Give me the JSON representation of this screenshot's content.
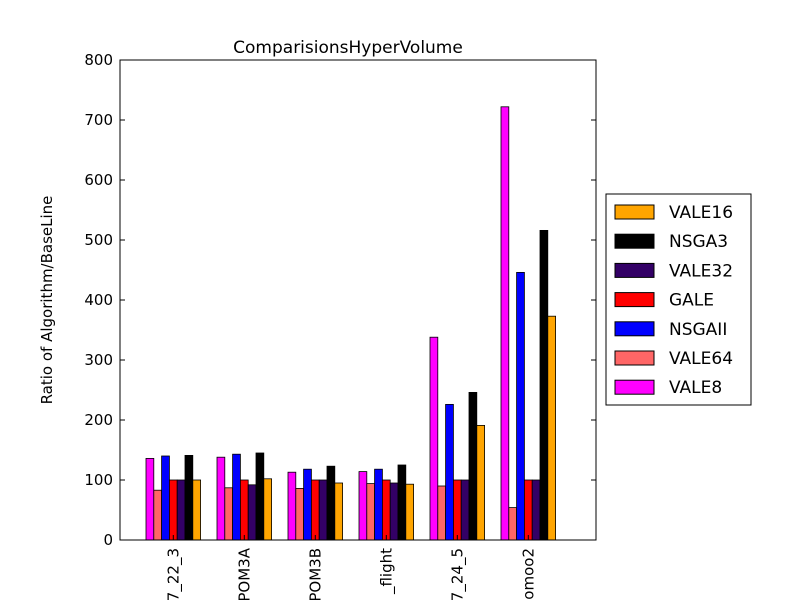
{
  "chart_data": {
    "type": "bar",
    "title": "ComparisionsHyperVolume",
    "xlabel": "",
    "ylabel": "Ratio of Algorithm/BaseLine",
    "ylim": [
      0,
      800
    ],
    "yticks": [
      0,
      100,
      200,
      300,
      400,
      500,
      600,
      700,
      800
    ],
    "grid": false,
    "legend_position": "right",
    "categories": [
      "7_22_3",
      "POM3A",
      "POM3B",
      "_flight",
      "7_24_5",
      "omoo2"
    ],
    "series": [
      {
        "name": "VALE8",
        "color": "#ff00ff",
        "values": [
          136,
          138,
          113,
          114,
          338,
          722
        ]
      },
      {
        "name": "VALE64",
        "color": "#ff6666",
        "values": [
          83,
          87,
          86,
          94,
          90,
          54
        ]
      },
      {
        "name": "NSGAII",
        "color": "#0000ff",
        "values": [
          140,
          143,
          118,
          118,
          226,
          446
        ]
      },
      {
        "name": "GALE",
        "color": "#ff0000",
        "values": [
          100,
          100,
          100,
          100,
          100,
          100
        ]
      },
      {
        "name": "VALE32",
        "color": "#330066",
        "values": [
          100,
          92,
          100,
          95,
          100,
          100
        ]
      },
      {
        "name": "NSGA3",
        "color": "#000000",
        "values": [
          141,
          145,
          123,
          125,
          246,
          516
        ]
      },
      {
        "name": "VALE16",
        "color": "#ffa500",
        "values": [
          100,
          102,
          95,
          93,
          191,
          373
        ]
      }
    ],
    "legend_order": [
      "VALE16",
      "NSGA3",
      "VALE32",
      "GALE",
      "NSGAII",
      "VALE64",
      "VALE8"
    ]
  }
}
